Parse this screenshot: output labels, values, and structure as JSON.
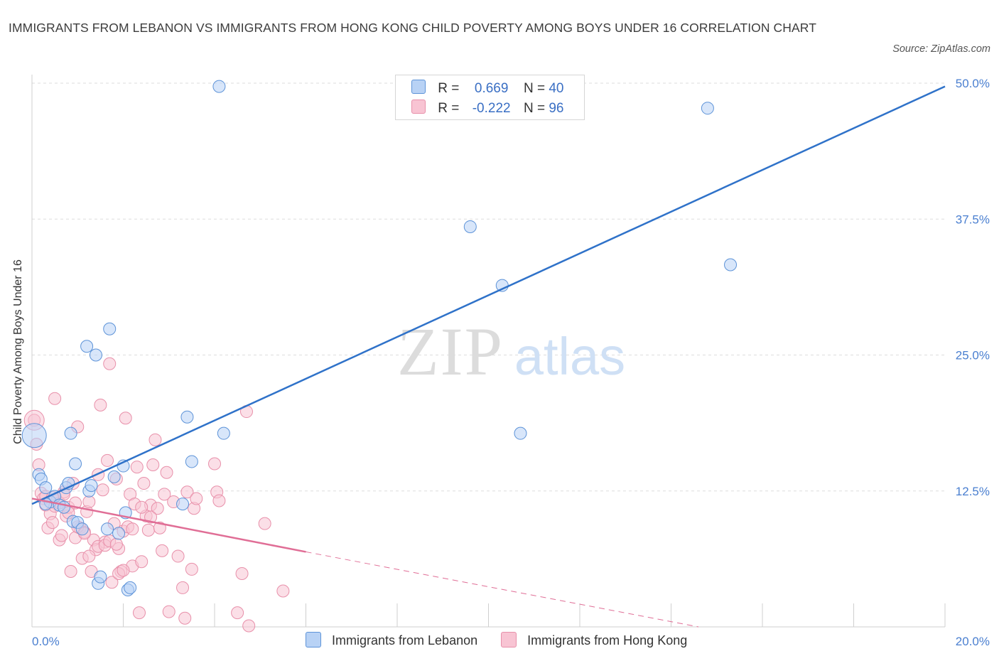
{
  "header": {
    "title": "IMMIGRANTS FROM LEBANON VS IMMIGRANTS FROM HONG KONG CHILD POVERTY AMONG BOYS UNDER 16 CORRELATION CHART",
    "source": "Source: ZipAtlas.com"
  },
  "watermark": {
    "zip": "ZIP",
    "atlas": "atlas"
  },
  "colors": {
    "lebanon_fill": "#b8d2f5",
    "lebanon_stroke": "#5d93d8",
    "lebanon_line": "#2f72c9",
    "hongkong_fill": "#f8c4d3",
    "hongkong_stroke": "#e890aa",
    "hongkong_line": "#e06e96",
    "grid": "#dddddd",
    "tick_label": "#4a7fd0"
  },
  "legend": {
    "rows": [
      {
        "r_label": "R =",
        "r_value": "0.669",
        "n_label": "N =",
        "n_value": "40"
      },
      {
        "r_label": "R =",
        "r_value": "-0.222",
        "n_label": "N =",
        "n_value": "96"
      }
    ]
  },
  "chart_data": {
    "type": "scatter",
    "title": "IMMIGRANTS FROM LEBANON VS IMMIGRANTS FROM HONG KONG CHILD POVERTY AMONG BOYS UNDER 16 CORRELATION CHART",
    "xlabel": "",
    "ylabel": "Child Poverty Among Boys Under 16",
    "xlim": [
      0,
      20
    ],
    "ylim": [
      0,
      50
    ],
    "x_tick_labels": [
      "0.0%",
      "20.0%"
    ],
    "y_ticks": [
      12.5,
      25.0,
      37.5,
      50.0
    ],
    "y_tick_labels": [
      "12.5%",
      "25.0%",
      "37.5%",
      "50.0%"
    ],
    "grid": true,
    "legend_position": "top-center",
    "series": [
      {
        "name": "Immigrants from Lebanon",
        "R": 0.669,
        "N": 40,
        "trend": {
          "x": [
            0,
            20
          ],
          "y": [
            11.3,
            49.7
          ],
          "dashed_from": null
        },
        "points": [
          [
            0.05,
            17.6
          ],
          [
            0.15,
            14.0
          ],
          [
            0.2,
            13.6
          ],
          [
            0.3,
            12.8
          ],
          [
            0.4,
            11.5
          ],
          [
            0.5,
            12.0
          ],
          [
            0.6,
            11.2
          ],
          [
            0.7,
            11.0
          ],
          [
            0.75,
            12.8
          ],
          [
            0.8,
            13.2
          ],
          [
            0.85,
            17.8
          ],
          [
            0.9,
            9.7
          ],
          [
            0.95,
            15.0
          ],
          [
            1.0,
            9.6
          ],
          [
            1.1,
            9.0
          ],
          [
            1.2,
            25.8
          ],
          [
            1.25,
            12.5
          ],
          [
            1.3,
            13.0
          ],
          [
            1.4,
            25.0
          ],
          [
            1.45,
            4.0
          ],
          [
            1.5,
            4.6
          ],
          [
            1.65,
            9.0
          ],
          [
            1.7,
            27.4
          ],
          [
            1.8,
            13.8
          ],
          [
            1.9,
            8.6
          ],
          [
            2.0,
            14.8
          ],
          [
            2.05,
            10.5
          ],
          [
            2.1,
            3.4
          ],
          [
            2.15,
            3.6
          ],
          [
            3.3,
            11.3
          ],
          [
            3.4,
            19.3
          ],
          [
            3.5,
            15.2
          ],
          [
            4.1,
            49.7
          ],
          [
            4.2,
            17.8
          ],
          [
            9.6,
            36.8
          ],
          [
            10.3,
            31.4
          ],
          [
            10.7,
            17.8
          ],
          [
            14.8,
            47.7
          ],
          [
            15.3,
            33.3
          ],
          [
            0.3,
            11.3
          ]
        ]
      },
      {
        "name": "Immigrants from Hong Kong",
        "R": -0.222,
        "N": 96,
        "trend": {
          "x": [
            0,
            6
          ],
          "y": [
            11.8,
            6.9
          ],
          "dashed_to": [
            14.6,
            0
          ]
        },
        "points": [
          [
            0.05,
            19.0
          ],
          [
            0.1,
            16.8
          ],
          [
            0.15,
            14.9
          ],
          [
            0.2,
            12.3
          ],
          [
            0.25,
            11.8
          ],
          [
            0.3,
            11.2
          ],
          [
            0.35,
            9.1
          ],
          [
            0.4,
            10.4
          ],
          [
            0.45,
            9.6
          ],
          [
            0.5,
            21.0
          ],
          [
            0.55,
            11.6
          ],
          [
            0.6,
            8.0
          ],
          [
            0.65,
            8.4
          ],
          [
            0.7,
            12.4
          ],
          [
            0.75,
            10.2
          ],
          [
            0.8,
            11.0
          ],
          [
            0.85,
            5.1
          ],
          [
            0.9,
            13.2
          ],
          [
            0.95,
            8.2
          ],
          [
            1.0,
            18.4
          ],
          [
            1.05,
            9.1
          ],
          [
            1.1,
            6.3
          ],
          [
            1.15,
            8.7
          ],
          [
            1.2,
            10.6
          ],
          [
            1.25,
            11.5
          ],
          [
            1.3,
            5.1
          ],
          [
            1.35,
            8.0
          ],
          [
            1.4,
            7.1
          ],
          [
            1.45,
            14.0
          ],
          [
            1.5,
            20.4
          ],
          [
            1.55,
            12.6
          ],
          [
            1.6,
            7.8
          ],
          [
            1.65,
            15.3
          ],
          [
            1.7,
            24.2
          ],
          [
            1.75,
            4.1
          ],
          [
            1.8,
            9.5
          ],
          [
            1.85,
            13.6
          ],
          [
            1.9,
            7.2
          ],
          [
            1.95,
            5.1
          ],
          [
            2.0,
            8.8
          ],
          [
            2.05,
            19.2
          ],
          [
            2.1,
            9.2
          ],
          [
            2.15,
            12.2
          ],
          [
            2.2,
            5.6
          ],
          [
            2.25,
            11.3
          ],
          [
            2.3,
            14.7
          ],
          [
            2.35,
            1.3
          ],
          [
            2.4,
            6.0
          ],
          [
            2.45,
            13.2
          ],
          [
            2.5,
            10.2
          ],
          [
            2.55,
            8.9
          ],
          [
            2.6,
            11.2
          ],
          [
            2.65,
            14.9
          ],
          [
            2.7,
            17.2
          ],
          [
            2.75,
            10.9
          ],
          [
            2.8,
            9.1
          ],
          [
            2.85,
            7.0
          ],
          [
            2.9,
            12.2
          ],
          [
            2.95,
            14.2
          ],
          [
            3.0,
            1.4
          ],
          [
            3.1,
            11.5
          ],
          [
            3.2,
            6.5
          ],
          [
            3.3,
            3.6
          ],
          [
            3.35,
            0.8
          ],
          [
            3.4,
            12.4
          ],
          [
            3.5,
            5.3
          ],
          [
            3.55,
            10.9
          ],
          [
            3.6,
            11.8
          ],
          [
            4.0,
            15.0
          ],
          [
            4.05,
            12.4
          ],
          [
            4.1,
            11.6
          ],
          [
            4.5,
            1.3
          ],
          [
            4.6,
            4.9
          ],
          [
            4.7,
            19.8
          ],
          [
            4.75,
            0.1
          ],
          [
            5.1,
            9.5
          ],
          [
            5.5,
            3.3
          ],
          [
            0.3,
            12.0
          ],
          [
            0.5,
            11.1
          ],
          [
            0.6,
            11.4
          ],
          [
            0.8,
            10.5
          ],
          [
            1.0,
            9.2
          ],
          [
            1.15,
            8.6
          ],
          [
            1.25,
            6.5
          ],
          [
            1.45,
            7.4
          ],
          [
            1.6,
            7.5
          ],
          [
            1.7,
            7.9
          ],
          [
            1.9,
            4.9
          ],
          [
            2.0,
            5.2
          ],
          [
            2.2,
            9.0
          ],
          [
            2.4,
            11.0
          ],
          [
            2.6,
            10.1
          ],
          [
            0.95,
            11.4
          ],
          [
            0.7,
            12.2
          ],
          [
            0.45,
            11.9
          ],
          [
            1.85,
            7.6
          ]
        ]
      }
    ]
  }
}
